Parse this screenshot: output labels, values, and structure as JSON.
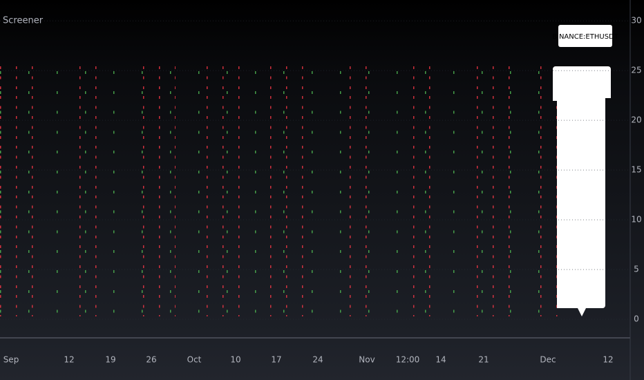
{
  "chart_data": {
    "type": "scatter",
    "title": "Screener",
    "annotation": "BINANCE:ETHUSDT",
    "categories": [
      "Sep",
      "12",
      "19",
      "26",
      "Oct",
      "10",
      "17",
      "24",
      "Nov",
      "12:00",
      "14",
      "21",
      "Dec",
      "12"
    ],
    "ylim": [
      -1.8,
      32.1
    ],
    "yticks": [
      0,
      5,
      10,
      15,
      20,
      25,
      30
    ],
    "grid": true
  }
}
